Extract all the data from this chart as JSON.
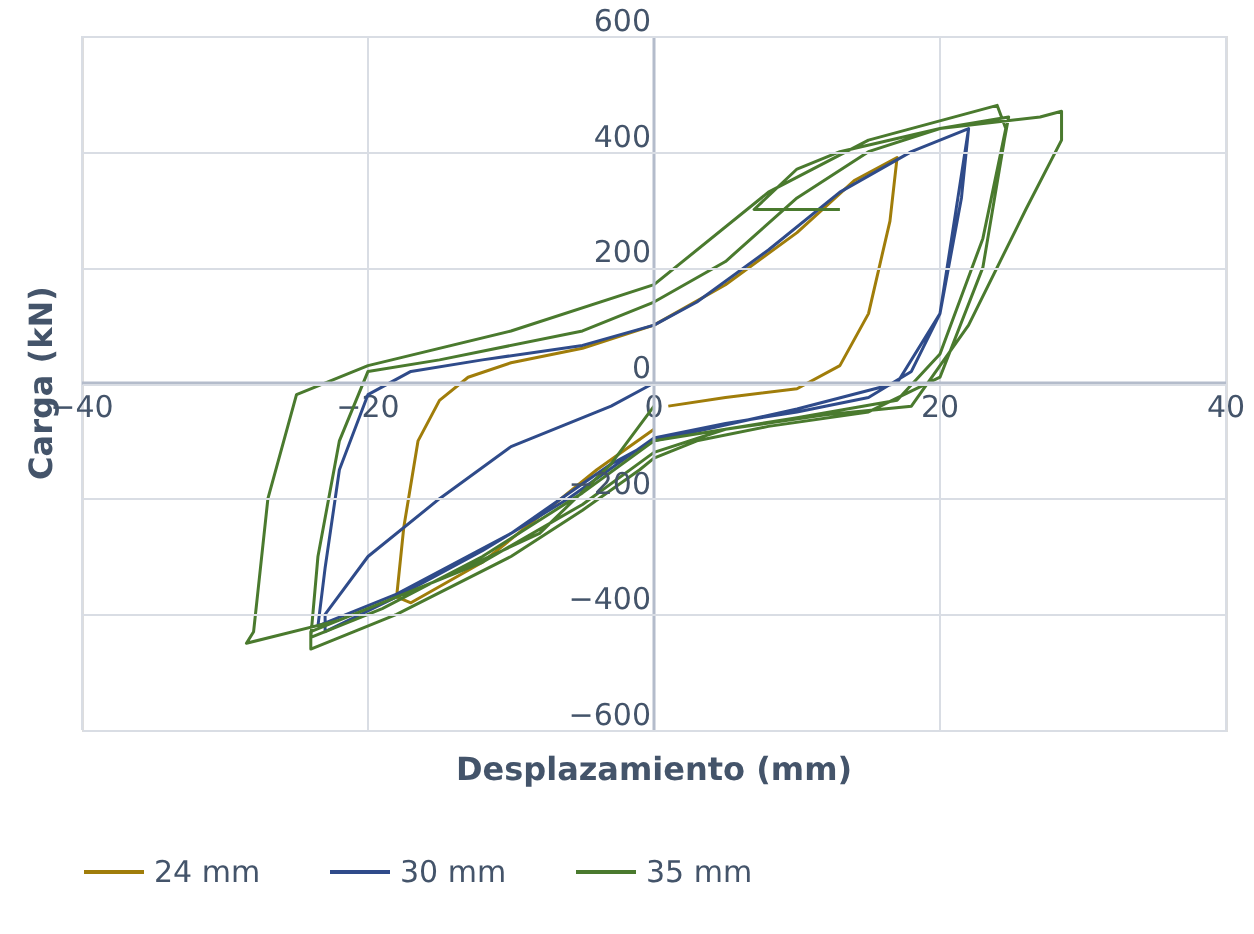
{
  "chart_data": {
    "type": "line",
    "xlabel": "Desplazamiento (mm)",
    "ylabel": "Carga (kN)",
    "xlim": [
      -40,
      40
    ],
    "ylim": [
      -600,
      600
    ],
    "xticks": [
      -40,
      -20,
      0,
      20,
      40
    ],
    "yticks": [
      -600,
      -400,
      -200,
      0,
      200,
      400,
      600
    ],
    "grid": true,
    "legend": "bottom",
    "marker": "none",
    "line_style": "solid",
    "series": [
      {
        "name": "24 mm",
        "color": "#a07d0a",
        "x": [
          1,
          5,
          10,
          13,
          15,
          16.5,
          17,
          14,
          10,
          5,
          0,
          -5,
          -10,
          -13,
          -15,
          -16.5,
          -17.5,
          -18,
          -17,
          -12,
          -8,
          -4,
          0
        ],
        "values": [
          -40,
          -25,
          -10,
          30,
          120,
          280,
          390,
          350,
          260,
          170,
          100,
          60,
          35,
          10,
          -30,
          -100,
          -250,
          -370,
          -380,
          -310,
          -230,
          -150,
          -80
        ]
      },
      {
        "name": "30 mm",
        "color": "#2f4b8a",
        "x": [
          0,
          -3,
          -10,
          -15,
          -20,
          -23,
          -23,
          -18,
          -12,
          -6,
          -2,
          0,
          5,
          10,
          15,
          18,
          20,
          21.5,
          22,
          18,
          13,
          8,
          3,
          0,
          -5,
          -12,
          -17,
          -20,
          -22,
          -23,
          -23.5,
          -18,
          -10,
          -3,
          0,
          10,
          17,
          20,
          22
        ],
        "values": [
          0,
          -40,
          -110,
          -200,
          -300,
          -400,
          -430,
          -370,
          -290,
          -200,
          -130,
          -95,
          -70,
          -50,
          -25,
          20,
          120,
          320,
          440,
          400,
          330,
          230,
          140,
          100,
          65,
          40,
          20,
          -20,
          -150,
          -320,
          -420,
          -365,
          -260,
          -140,
          -100,
          -45,
          0,
          120,
          440
        ]
      },
      {
        "name": "35 mm",
        "color": "#4a7a2e",
        "x": [
          0,
          -3,
          -8,
          -15,
          -24,
          -24,
          -18,
          -10,
          -5,
          -1,
          0,
          3,
          8,
          15,
          20,
          23,
          24.5,
          24.8,
          20,
          15,
          10,
          5,
          0,
          -5,
          -15,
          -20,
          -22,
          -23.5,
          -24,
          -19,
          -12,
          -5,
          0,
          5,
          10,
          17,
          20,
          23,
          24.6,
          24,
          15,
          8,
          0,
          -10,
          -20,
          -25,
          -27,
          -28,
          -28.5,
          -22,
          -12,
          -5,
          0,
          5,
          12,
          18,
          22,
          26,
          28.5,
          28.5,
          27,
          20,
          13,
          10,
          7,
          13
        ],
        "values": [
          -40,
          -140,
          -260,
          -340,
          -430,
          -460,
          -400,
          -300,
          -220,
          -150,
          -130,
          -100,
          -75,
          -50,
          10,
          200,
          420,
          460,
          440,
          400,
          320,
          210,
          140,
          90,
          40,
          20,
          -100,
          -300,
          -440,
          -390,
          -300,
          -190,
          -100,
          -80,
          -60,
          -30,
          50,
          250,
          440,
          480,
          420,
          330,
          170,
          90,
          30,
          -20,
          -200,
          -430,
          -450,
          -410,
          -310,
          -210,
          -120,
          -80,
          -55,
          -40,
          100,
          300,
          420,
          470,
          460,
          440,
          400,
          370,
          300,
          300
        ]
      }
    ]
  }
}
